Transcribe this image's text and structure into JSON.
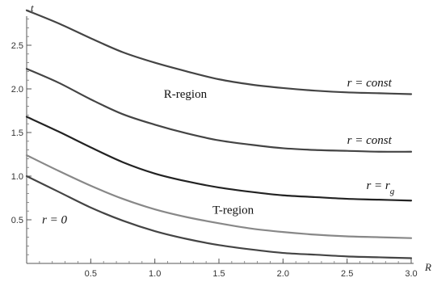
{
  "chart_data": {
    "type": "line",
    "xlabel": "R",
    "ylabel": "t",
    "xlim": [
      0,
      3.0
    ],
    "ylim": [
      0,
      3.0
    ],
    "x_ticks": [
      "0.5",
      "1.0",
      "1.5",
      "2.0",
      "2.5",
      "3.0"
    ],
    "y_ticks": [
      "0.5",
      "1.0",
      "1.5",
      "2.0",
      "2.5"
    ],
    "x_tick_values": [
      0.5,
      1.0,
      1.5,
      2.0,
      2.5,
      3.0
    ],
    "y_tick_values": [
      0.5,
      1.0,
      1.5,
      2.0,
      2.5
    ],
    "series": [
      {
        "color": "#444444",
        "x": [
          0.0,
          0.25,
          0.5,
          0.75,
          1.0,
          1.25,
          1.5,
          1.75,
          2.0,
          2.25,
          2.5,
          2.75,
          3.0
        ],
        "values": [
          2.9,
          2.75,
          2.58,
          2.42,
          2.3,
          2.2,
          2.11,
          2.05,
          2.01,
          1.98,
          1.96,
          1.95,
          1.94
        ]
      },
      {
        "color": "#444444",
        "x": [
          0.0,
          0.25,
          0.5,
          0.75,
          1.0,
          1.25,
          1.5,
          1.75,
          2.0,
          2.25,
          2.5,
          2.75,
          3.0
        ],
        "values": [
          2.23,
          2.07,
          1.88,
          1.71,
          1.59,
          1.49,
          1.41,
          1.36,
          1.32,
          1.3,
          1.29,
          1.28,
          1.28
        ]
      },
      {
        "color": "#222222",
        "x": [
          0.0,
          0.25,
          0.5,
          0.75,
          1.0,
          1.25,
          1.5,
          1.75,
          2.0,
          2.25,
          2.5,
          2.75,
          3.0
        ],
        "values": [
          1.68,
          1.51,
          1.33,
          1.16,
          1.03,
          0.94,
          0.87,
          0.82,
          0.78,
          0.76,
          0.74,
          0.73,
          0.72
        ]
      },
      {
        "color": "#888888",
        "x": [
          0.0,
          0.25,
          0.5,
          0.75,
          1.0,
          1.25,
          1.5,
          1.75,
          2.0,
          2.25,
          2.5,
          2.75,
          3.0
        ],
        "values": [
          1.24,
          1.06,
          0.89,
          0.74,
          0.62,
          0.53,
          0.46,
          0.4,
          0.36,
          0.33,
          0.31,
          0.3,
          0.29
        ]
      },
      {
        "color": "#444444",
        "x": [
          0.0,
          0.25,
          0.5,
          0.75,
          1.0,
          1.25,
          1.5,
          1.75,
          2.0,
          2.25,
          2.5,
          2.75,
          3.0
        ],
        "values": [
          1.0,
          0.82,
          0.64,
          0.49,
          0.37,
          0.28,
          0.21,
          0.16,
          0.12,
          0.1,
          0.08,
          0.07,
          0.06
        ]
      }
    ],
    "annotations": [
      {
        "id": "r-const-top",
        "text": "r = const",
        "x": 2.5,
        "y": 2.03,
        "italic": true
      },
      {
        "id": "r-region",
        "text": "R-region",
        "x": 1.07,
        "y": 1.9,
        "italic": false
      },
      {
        "id": "r-const-mid",
        "text": "r = const",
        "x": 2.5,
        "y": 1.37,
        "italic": true
      },
      {
        "id": "r-rg",
        "text": "r = r",
        "sub": "g",
        "x": 2.65,
        "y": 0.85,
        "italic": true
      },
      {
        "id": "t-region",
        "text": "T-region",
        "x": 1.45,
        "y": 0.57,
        "italic": false
      },
      {
        "id": "r-zero",
        "text": "r = 0",
        "x": 0.12,
        "y": 0.46,
        "italic": true
      }
    ]
  }
}
